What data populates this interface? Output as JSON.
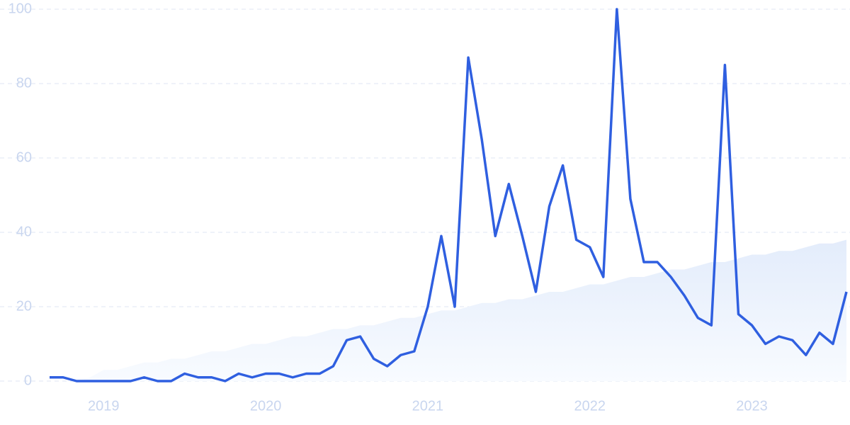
{
  "chart_data": {
    "type": "line",
    "categories": [
      null,
      null,
      null,
      null,
      "2019",
      null,
      null,
      null,
      null,
      null,
      null,
      null,
      null,
      null,
      null,
      null,
      "2020",
      null,
      null,
      null,
      null,
      null,
      null,
      null,
      null,
      null,
      null,
      null,
      "2021",
      null,
      null,
      null,
      null,
      null,
      null,
      null,
      null,
      null,
      null,
      null,
      "2022",
      null,
      null,
      null,
      null,
      null,
      null,
      null,
      null,
      null,
      null,
      null,
      "2023",
      null,
      null,
      null,
      null,
      null,
      null,
      null
    ],
    "series": [
      {
        "color": "#e8f0fc",
        "fill": true,
        "values": [
          0,
          0,
          0,
          1,
          3,
          3,
          4,
          5,
          5,
          6,
          6,
          7,
          8,
          8,
          9,
          10,
          10,
          11,
          12,
          12,
          13,
          14,
          14,
          15,
          15,
          16,
          17,
          17,
          18,
          19,
          19,
          20,
          21,
          21,
          22,
          22,
          23,
          24,
          24,
          25,
          26,
          26,
          27,
          28,
          28,
          29,
          30,
          30,
          31,
          32,
          32,
          33,
          34,
          34,
          35,
          35,
          36,
          37,
          37,
          38
        ]
      },
      {
        "color": "#2f5fe0",
        "fill": false,
        "values": [
          1,
          1,
          0,
          0,
          0,
          0,
          0,
          1,
          0,
          0,
          2,
          1,
          1,
          0,
          2,
          1,
          2,
          2,
          1,
          2,
          2,
          4,
          11,
          12,
          6,
          4,
          7,
          8,
          20,
          39,
          20,
          87,
          65,
          39,
          53,
          39,
          24,
          47,
          58,
          38,
          36,
          28,
          100,
          49,
          32,
          32,
          28,
          23,
          17,
          15,
          85,
          18,
          15,
          10,
          12,
          11,
          7,
          13,
          10,
          24
        ]
      }
    ],
    "ylim": [
      0,
      100
    ],
    "yticks": [
      0,
      20,
      40,
      60,
      80,
      100
    ],
    "grid": true
  }
}
